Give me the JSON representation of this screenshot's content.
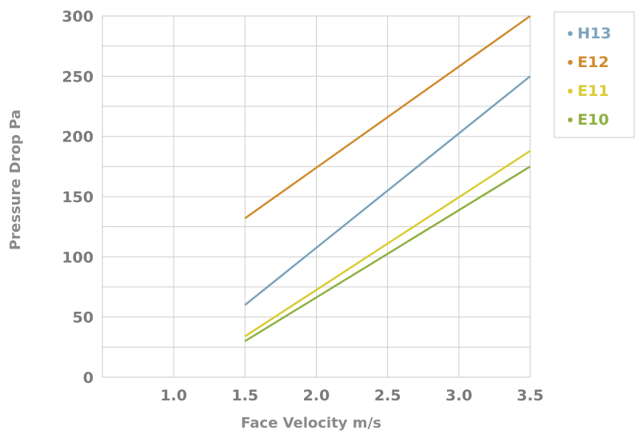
{
  "chart_data": {
    "type": "line",
    "xlabel": "Face Velocity m/s",
    "ylabel": "Pressure Drop Pa",
    "xlim": [
      0.5,
      3.5
    ],
    "ylim": [
      0,
      300
    ],
    "x_ticks": [
      "1.0",
      "1.5",
      "2.0",
      "2.5",
      "3.0",
      "3.5"
    ],
    "y_ticks": [
      "0",
      "50",
      "100",
      "150",
      "200",
      "250",
      "300"
    ],
    "grid": true,
    "legend_position": "top-right",
    "series": [
      {
        "name": "H13",
        "color": "#7ba3bc",
        "x": [
          1.5,
          3.5
        ],
        "y": [
          60,
          250
        ]
      },
      {
        "name": "E12",
        "color": "#d08c2e",
        "x": [
          1.5,
          3.5
        ],
        "y": [
          132,
          300
        ]
      },
      {
        "name": "E11",
        "color": "#d9cc33",
        "x": [
          1.5,
          3.5
        ],
        "y": [
          34,
          188
        ]
      },
      {
        "name": "E10",
        "color": "#8fb043",
        "x": [
          1.5,
          3.5
        ],
        "y": [
          30,
          175
        ]
      }
    ]
  }
}
